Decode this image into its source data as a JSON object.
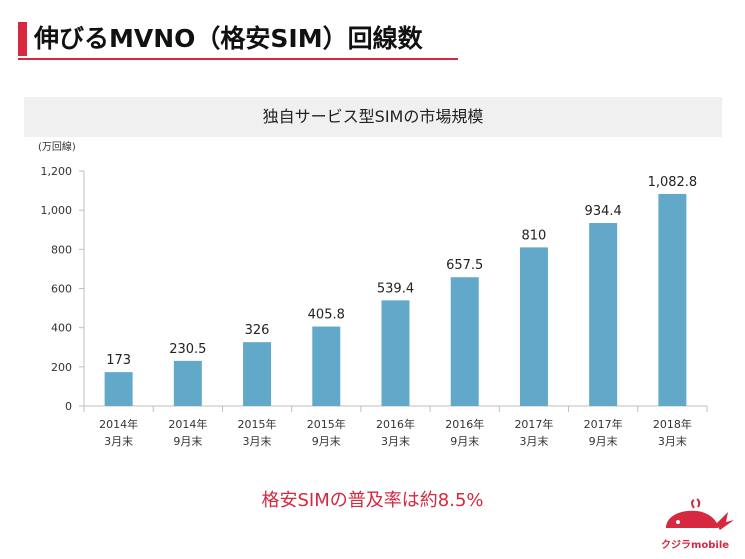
{
  "header": {
    "title": "伸びるMVNO（格安SIM）回線数"
  },
  "chart_data": {
    "type": "bar",
    "title": "独自サービス型SIMの市場規模",
    "ylabel": "(万回線)",
    "xlabel": "",
    "ylim": [
      0,
      1200
    ],
    "yticks": [
      0,
      200,
      400,
      600,
      800,
      1000,
      1200
    ],
    "ytick_labels": [
      "0",
      "200",
      "400",
      "600",
      "800",
      "1,000",
      "1,200"
    ],
    "categories": [
      [
        "2014年",
        "3月末"
      ],
      [
        "2014年",
        "9月末"
      ],
      [
        "2015年",
        "3月末"
      ],
      [
        "2015年",
        "9月末"
      ],
      [
        "2016年",
        "3月末"
      ],
      [
        "2016年",
        "9月末"
      ],
      [
        "2017年",
        "3月末"
      ],
      [
        "2017年",
        "9月末"
      ],
      [
        "2018年",
        "3月末"
      ]
    ],
    "values": [
      173,
      230.5,
      326,
      405.8,
      539.4,
      657.5,
      810,
      934.4,
      1082.8
    ],
    "value_labels": [
      "173",
      "230.5",
      "326",
      "405.8",
      "539.4",
      "657.5",
      "810",
      "934.4",
      "1,082.8"
    ],
    "bar_color": "#62a9c9",
    "grid": false,
    "legend": "none"
  },
  "footnote": "格安SIMの普及率は約8.5%",
  "brand": {
    "name": "クジラmobile",
    "logo_icon": "whale-icon",
    "accent_color": "#d6283f"
  }
}
